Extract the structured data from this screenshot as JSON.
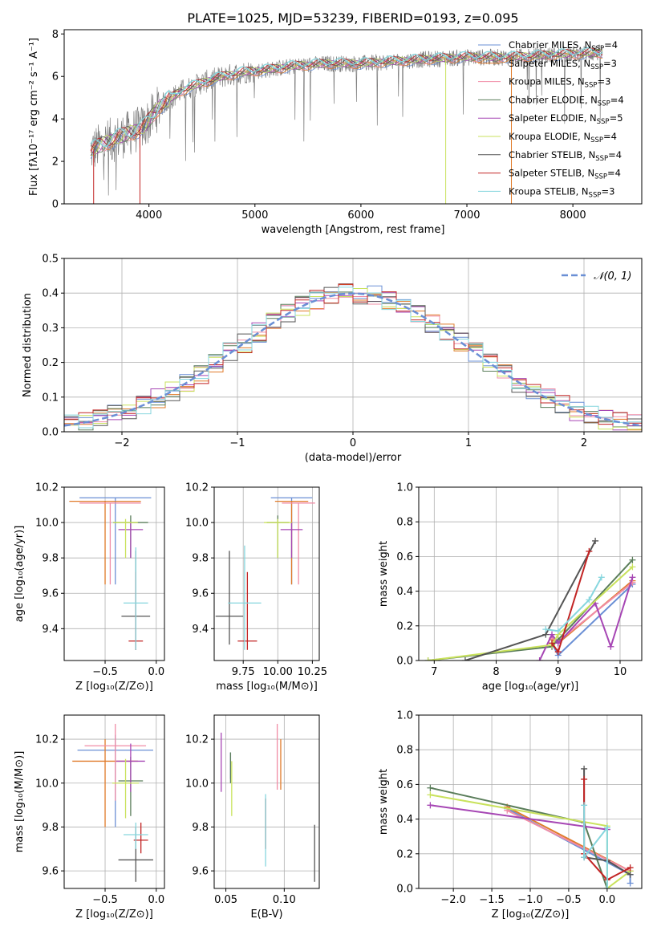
{
  "colors": {
    "chab_miles": "#6a8fd5",
    "salp_miles": "#e07b2a",
    "krou_miles": "#f08ca6",
    "chab_elodie": "#5a7d5a",
    "salp_elodie": "#a646b4",
    "krou_elodie": "#c9e25c",
    "chab_stelib": "#555555",
    "salp_stelib": "#c22424",
    "krou_stelib": "#86d6de",
    "spectrum": "#808080",
    "gaussian": "#6a8fd5"
  },
  "chart_data": [
    {
      "id": "spectrum",
      "type": "line",
      "title": "PLATE=1025, MJD=53239, FIBERID=0193, z=0.095",
      "xlabel": "wavelength [Angstrom, rest frame]",
      "ylabel": "Flux [fλ10⁻¹⁷ erg cm⁻² s⁻¹ A⁻¹]",
      "xlim": [
        3200,
        8650
      ],
      "ylim": [
        0,
        8.2
      ],
      "xticks": [
        "4000",
        "5000",
        "6000",
        "7000",
        "8000"
      ],
      "yticks": [
        "0",
        "2",
        "4",
        "6",
        "8"
      ],
      "legend_position": "right",
      "legend": [
        {
          "key": "chab_miles",
          "label": "Chabrier MILES, N",
          "sub": "SSP",
          "tail": "=4"
        },
        {
          "key": "salp_miles",
          "label": "Salpeter MILES, N",
          "sub": "SSP",
          "tail": "=3"
        },
        {
          "key": "krou_miles",
          "label": "Kroupa MILES, N",
          "sub": "SSP",
          "tail": "=3"
        },
        {
          "key": "chab_elodie",
          "label": "Chabrier ELODIE, N",
          "sub": "SSP",
          "tail": "=4"
        },
        {
          "key": "salp_elodie",
          "label": "Salpeter ELODIE, N",
          "sub": "SSP",
          "tail": "=5"
        },
        {
          "key": "krou_elodie",
          "label": "Kroupa ELODIE, N",
          "sub": "SSP",
          "tail": "=4"
        },
        {
          "key": "chab_stelib",
          "label": "Chabrier STELIB, N",
          "sub": "SSP",
          "tail": "=4"
        },
        {
          "key": "salp_stelib",
          "label": "Salpeter STELIB, N",
          "sub": "SSP",
          "tail": "=4"
        },
        {
          "key": "krou_stelib",
          "label": "Kroupa STELIB, N",
          "sub": "SSP",
          "tail": "=3"
        }
      ],
      "continuum": {
        "x": [
          3450,
          3600,
          3800,
          3950,
          4100,
          4300,
          4500,
          4700,
          4900,
          5100,
          5400,
          5700,
          6000,
          6300,
          6600,
          7000,
          7400,
          7800,
          8200
        ],
        "y": [
          2.5,
          2.9,
          3.3,
          3.6,
          4.6,
          5.3,
          5.7,
          6.0,
          6.2,
          6.3,
          6.5,
          6.6,
          6.6,
          6.7,
          6.8,
          6.9,
          6.9,
          7.0,
          7.1
        ]
      },
      "spikes": [
        {
          "x": 3478,
          "y": 0
        },
        {
          "x": 3915,
          "y": 0
        },
        {
          "x": 6800,
          "y": 0
        },
        {
          "x": 7420,
          "y": 0
        }
      ]
    },
    {
      "id": "residuals",
      "type": "histogram",
      "xlabel": "(data-model)/error",
      "ylabel": "Normed distribution",
      "xlim": [
        -2.5,
        2.5
      ],
      "ylim": [
        0,
        0.5
      ],
      "xticks": [
        "−2",
        "−1",
        "0",
        "1",
        "2"
      ],
      "yticks": [
        "0.0",
        "0.1",
        "0.2",
        "0.3",
        "0.4",
        "0.5"
      ],
      "legend": "𝒩(0, 1)",
      "legend_position": "top-right",
      "bins": 40
    },
    {
      "id": "age_z",
      "type": "errorbar",
      "xlabel": "Z [log₁₀(Z/Z⊙)]",
      "ylabel": "age  [log₁₀(age/yr)]",
      "xlim": [
        -0.9,
        0.08
      ],
      "ylim": [
        9.22,
        10.2
      ],
      "xticks": [
        -0.5,
        0.0
      ],
      "xticklabels": [
        "−0.5",
        "0.0"
      ],
      "yticks": [
        9.4,
        9.6,
        9.8,
        10.0,
        10.2
      ],
      "yticklabels": [
        "9.4",
        "9.6",
        "9.8",
        "10.0",
        "10.2"
      ],
      "points": [
        {
          "key": "chab_miles",
          "x": -0.4,
          "xerr": 0.35,
          "y": 10.14,
          "yerr": 0.0,
          "y_lo": 9.65,
          "y_hi": 10.14
        },
        {
          "key": "salp_miles",
          "x": -0.5,
          "xerr": 0.35,
          "y": 10.12,
          "yerr": 0.0,
          "y_lo": 9.65,
          "y_hi": 10.12
        },
        {
          "key": "krou_miles",
          "x": -0.45,
          "xerr": 0.3,
          "y": 10.11,
          "yerr": 0.0,
          "y_lo": 9.65,
          "y_hi": 10.11
        },
        {
          "key": "chab_elodie",
          "x": -0.25,
          "xerr": 0.17,
          "y": 10.0,
          "yerr": 0.04,
          "y_lo": 9.8,
          "y_hi": 10.04
        },
        {
          "key": "salp_elodie",
          "x": -0.25,
          "xerr": 0.12,
          "y": 9.96,
          "yerr": 0.0,
          "y_lo": 9.8,
          "y_hi": 10.0
        },
        {
          "key": "krou_elodie",
          "x": -0.3,
          "xerr": 0.12,
          "y": 10.0,
          "yerr": 0.0,
          "y_lo": 9.8,
          "y_hi": 10.02
        },
        {
          "key": "chab_stelib",
          "x": -0.2,
          "xerr": 0.14,
          "y": 9.47,
          "yerr": 0.0,
          "y_lo": 9.28,
          "y_hi": 9.84
        },
        {
          "key": "salp_stelib",
          "x": -0.2,
          "xerr": 0.07,
          "y": 9.33,
          "yerr": 0.0,
          "y_lo": 9.28,
          "y_hi": 9.72
        },
        {
          "key": "krou_stelib",
          "x": -0.2,
          "xerr": 0.12,
          "y": 9.545,
          "yerr": 0.0,
          "y_lo": 9.28,
          "y_hi": 9.86
        }
      ]
    },
    {
      "id": "age_mass",
      "type": "errorbar",
      "xlabel": "mass [log₁₀(M/M⊙)]",
      "ylabel": "",
      "xlim": [
        9.54,
        10.3
      ],
      "ylim": [
        9.22,
        10.2
      ],
      "xticks": [
        9.75,
        10.0,
        10.25
      ],
      "xticklabels": [
        "9.75",
        "10.00",
        "10.25"
      ],
      "yticks": [
        9.4,
        9.6,
        9.8,
        10.0,
        10.2
      ],
      "yticklabels": [
        "9.4",
        "9.6",
        "9.8",
        "10.0",
        "10.2"
      ],
      "points": [
        {
          "key": "chab_miles",
          "x": 10.1,
          "xerr": 0.15,
          "y": 10.14,
          "y_lo": 9.65,
          "y_hi": 10.14
        },
        {
          "key": "salp_miles",
          "x": 10.1,
          "xerr": 0.12,
          "y": 10.12,
          "y_lo": 9.65,
          "y_hi": 10.12
        },
        {
          "key": "krou_miles",
          "x": 10.15,
          "xerr": 0.12,
          "y": 10.11,
          "y_lo": 9.65,
          "y_hi": 10.11
        },
        {
          "key": "chab_elodie",
          "x": 10.0,
          "xerr": 0.08,
          "y": 10.0,
          "y_lo": 9.8,
          "y_hi": 10.04
        },
        {
          "key": "salp_elodie",
          "x": 10.1,
          "xerr": 0.08,
          "y": 9.96,
          "y_lo": 9.8,
          "y_hi": 10.0
        },
        {
          "key": "krou_elodie",
          "x": 10.0,
          "xerr": 0.1,
          "y": 10.0,
          "y_lo": 9.8,
          "y_hi": 10.02
        },
        {
          "key": "chab_stelib",
          "x": 9.65,
          "xerr": 0.1,
          "y": 9.47,
          "y_lo": 9.31,
          "y_hi": 9.84
        },
        {
          "key": "salp_stelib",
          "x": 9.78,
          "xerr": 0.07,
          "y": 9.33,
          "y_lo": 9.28,
          "y_hi": 9.72
        },
        {
          "key": "krou_stelib",
          "x": 9.76,
          "xerr": 0.12,
          "y": 9.545,
          "y_lo": 9.28,
          "y_hi": 9.87
        }
      ]
    },
    {
      "id": "weight_age",
      "type": "line",
      "xlabel": "age  [log₁₀(age/yr)]",
      "ylabel": "mass weight",
      "xlim": [
        6.75,
        10.35
      ],
      "ylim": [
        0,
        1.0
      ],
      "xticks": [
        7,
        8,
        9,
        10
      ],
      "xticklabels": [
        "7",
        "8",
        "9",
        "10"
      ],
      "yticks": [
        0.0,
        0.2,
        0.4,
        0.6,
        0.8,
        1.0
      ],
      "yticklabels": [
        "0.0",
        "0.2",
        "0.4",
        "0.6",
        "0.8",
        "1.0"
      ],
      "series": [
        {
          "key": "chab_miles",
          "x": [
            8.9,
            9.0,
            10.2
          ],
          "y": [
            0.1,
            0.03,
            0.44
          ]
        },
        {
          "key": "salp_miles",
          "x": [
            8.9,
            9.0,
            10.2
          ],
          "y": [
            0.12,
            0.1,
            0.46
          ]
        },
        {
          "key": "krou_miles",
          "x": [
            8.9,
            9.0,
            10.2
          ],
          "y": [
            0.13,
            0.11,
            0.45
          ]
        },
        {
          "key": "chab_elodie",
          "x": [
            6.9,
            8.9,
            9.0,
            10.2
          ],
          "y": [
            0.0,
            0.08,
            0.12,
            0.58
          ]
        },
        {
          "key": "salp_elodie",
          "x": [
            8.7,
            8.9,
            9.0,
            9.6,
            9.85,
            10.2
          ],
          "y": [
            0.0,
            0.15,
            0.1,
            0.33,
            0.08,
            0.48
          ]
        },
        {
          "key": "krou_elodie",
          "x": [
            6.9,
            8.9,
            9.0,
            10.2
          ],
          "y": [
            0.0,
            0.09,
            0.15,
            0.54
          ]
        },
        {
          "key": "chab_stelib",
          "x": [
            7.5,
            8.8,
            9.6
          ],
          "y": [
            0.0,
            0.15,
            0.69
          ]
        },
        {
          "key": "salp_stelib",
          "x": [
            8.9,
            9.0,
            9.5
          ],
          "y": [
            0.1,
            0.05,
            0.63
          ]
        },
        {
          "key": "krou_stelib",
          "x": [
            8.8,
            9.0,
            9.5,
            9.7
          ],
          "y": [
            0.18,
            0.17,
            0.35,
            0.48
          ]
        }
      ]
    },
    {
      "id": "mass_z",
      "type": "errorbar",
      "xlabel": "Z [log₁₀(Z/Z⊙)]",
      "ylabel": "mass [log₁₀(M/M⊙)]",
      "xlim": [
        -0.9,
        0.08
      ],
      "ylim": [
        9.52,
        10.31
      ],
      "xticks": [
        -0.5,
        0.0
      ],
      "xticklabels": [
        "−0.5",
        "0.0"
      ],
      "yticks": [
        9.6,
        9.8,
        10.0,
        10.2
      ],
      "yticklabels": [
        "9.6",
        "9.8",
        "10.0",
        "10.2"
      ],
      "points": [
        {
          "key": "chab_miles",
          "x": -0.4,
          "xerr": 0.37,
          "y": 10.15,
          "y_lo": 9.8,
          "y_hi": 10.22
        },
        {
          "key": "salp_miles",
          "x": -0.5,
          "xerr": 0.32,
          "y": 10.1,
          "y_lo": 9.8,
          "y_hi": 10.2
        },
        {
          "key": "krou_miles",
          "x": -0.4,
          "xerr": 0.3,
          "y": 10.17,
          "y_lo": 9.92,
          "y_hi": 10.27
        },
        {
          "key": "chab_elodie",
          "x": -0.25,
          "xerr": 0.12,
          "y": 10.01,
          "y_lo": 9.85,
          "y_hi": 10.12
        },
        {
          "key": "salp_elodie",
          "x": -0.25,
          "xerr": 0.14,
          "y": 10.1,
          "y_lo": 9.96,
          "y_hi": 10.18
        },
        {
          "key": "krou_elodie",
          "x": -0.3,
          "xerr": 0.13,
          "y": 10.0,
          "y_lo": 9.84,
          "y_hi": 10.11
        },
        {
          "key": "chab_stelib",
          "x": -0.2,
          "xerr": 0.17,
          "y": 9.65,
          "y_lo": 9.55,
          "y_hi": 9.8
        },
        {
          "key": "salp_stelib",
          "x": -0.15,
          "xerr": 0.07,
          "y": 9.74,
          "y_lo": 9.68,
          "y_hi": 9.82
        },
        {
          "key": "krou_stelib",
          "x": -0.2,
          "xerr": 0.12,
          "y": 9.765,
          "y_lo": 9.7,
          "y_hi": 9.82
        }
      ]
    },
    {
      "id": "mass_ebv",
      "type": "errorbar",
      "xlabel": "E(B-V)",
      "ylabel": "",
      "xlim": [
        0.04,
        0.13
      ],
      "ylim": [
        9.52,
        10.31
      ],
      "xticks": [
        0.05,
        0.1
      ],
      "xticklabels": [
        "0.05",
        "0.10"
      ],
      "yticks": [
        9.6,
        9.8,
        10.0,
        10.2
      ],
      "yticklabels": [
        "9.6",
        "9.8",
        "10.0",
        "10.2"
      ],
      "points": [
        {
          "key": "chab_miles",
          "x": 0.054,
          "y": 10.12,
          "y_lo": 10.02,
          "y_hi": 10.14
        },
        {
          "key": "salp_miles",
          "x": 0.097,
          "y": 10.1,
          "y_lo": 9.97,
          "y_hi": 10.2
        },
        {
          "key": "krou_miles",
          "x": 0.094,
          "y": 10.12,
          "y_lo": 9.97,
          "y_hi": 10.27
        },
        {
          "key": "chab_elodie",
          "x": 0.054,
          "y": 10.12,
          "y_lo": 10.0,
          "y_hi": 10.14
        },
        {
          "key": "salp_elodie",
          "x": 0.046,
          "y": 10.05,
          "y_lo": 9.96,
          "y_hi": 10.23
        },
        {
          "key": "krou_elodie",
          "x": 0.055,
          "y": 9.98,
          "y_lo": 9.85,
          "y_hi": 10.1
        },
        {
          "key": "chab_stelib",
          "x": 0.126,
          "y": 9.65,
          "y_lo": 9.55,
          "y_hi": 9.81
        },
        {
          "key": "salp_stelib",
          "x": 0.084,
          "y": 9.78,
          "y_lo": 9.7,
          "y_hi": 9.93
        },
        {
          "key": "krou_stelib",
          "x": 0.084,
          "y": 9.76,
          "y_lo": 9.62,
          "y_hi": 9.95
        }
      ]
    },
    {
      "id": "weight_z",
      "type": "line",
      "xlabel": "Z [log₁₀(Z/Z⊙)]",
      "ylabel": "mass weight",
      "xlim": [
        -2.45,
        0.45
      ],
      "ylim": [
        0,
        1.0
      ],
      "xticks": [
        -2.0,
        -1.5,
        -1.0,
        -0.5,
        0.0
      ],
      "xticklabels": [
        "−2.0",
        "−1.5",
        "−1.0",
        "−0.5",
        "0.0"
      ],
      "yticks": [
        0.0,
        0.2,
        0.4,
        0.6,
        0.8,
        1.0
      ],
      "yticklabels": [
        "0.0",
        "0.2",
        "0.4",
        "0.6",
        "0.8",
        "1.0"
      ],
      "series": [
        {
          "key": "chab_miles",
          "x": [
            -1.3,
            0.3,
            0.3
          ],
          "y": [
            0.46,
            0.08,
            0.03
          ]
        },
        {
          "key": "salp_miles",
          "x": [
            -1.3,
            0.3
          ],
          "y": [
            0.47,
            0.1
          ]
        },
        {
          "key": "krou_miles",
          "x": [
            -1.3,
            0.3
          ],
          "y": [
            0.45,
            0.1
          ]
        },
        {
          "key": "chab_elodie",
          "x": [
            -2.3,
            -0.3,
            0.0
          ],
          "y": [
            0.58,
            0.38,
            0.0
          ]
        },
        {
          "key": "salp_elodie",
          "x": [
            -2.3,
            0.0
          ],
          "y": [
            0.48,
            0.34
          ]
        },
        {
          "key": "krou_elodie",
          "x": [
            -2.3,
            0.0,
            0.0,
            0.3
          ],
          "y": [
            0.54,
            0.36,
            0.0,
            0.1
          ]
        },
        {
          "key": "chab_stelib",
          "x": [
            -0.3,
            -0.3,
            0.0,
            0.3
          ],
          "y": [
            0.69,
            0.18,
            0.16,
            0.08
          ]
        },
        {
          "key": "salp_stelib",
          "x": [
            -0.3,
            -0.3,
            0.0,
            0.3
          ],
          "y": [
            0.63,
            0.2,
            0.05,
            0.12
          ]
        },
        {
          "key": "krou_stelib",
          "x": [
            -0.3,
            -0.3,
            0.0,
            0.0
          ],
          "y": [
            0.48,
            0.18,
            0.35,
            0.0
          ]
        }
      ]
    }
  ]
}
